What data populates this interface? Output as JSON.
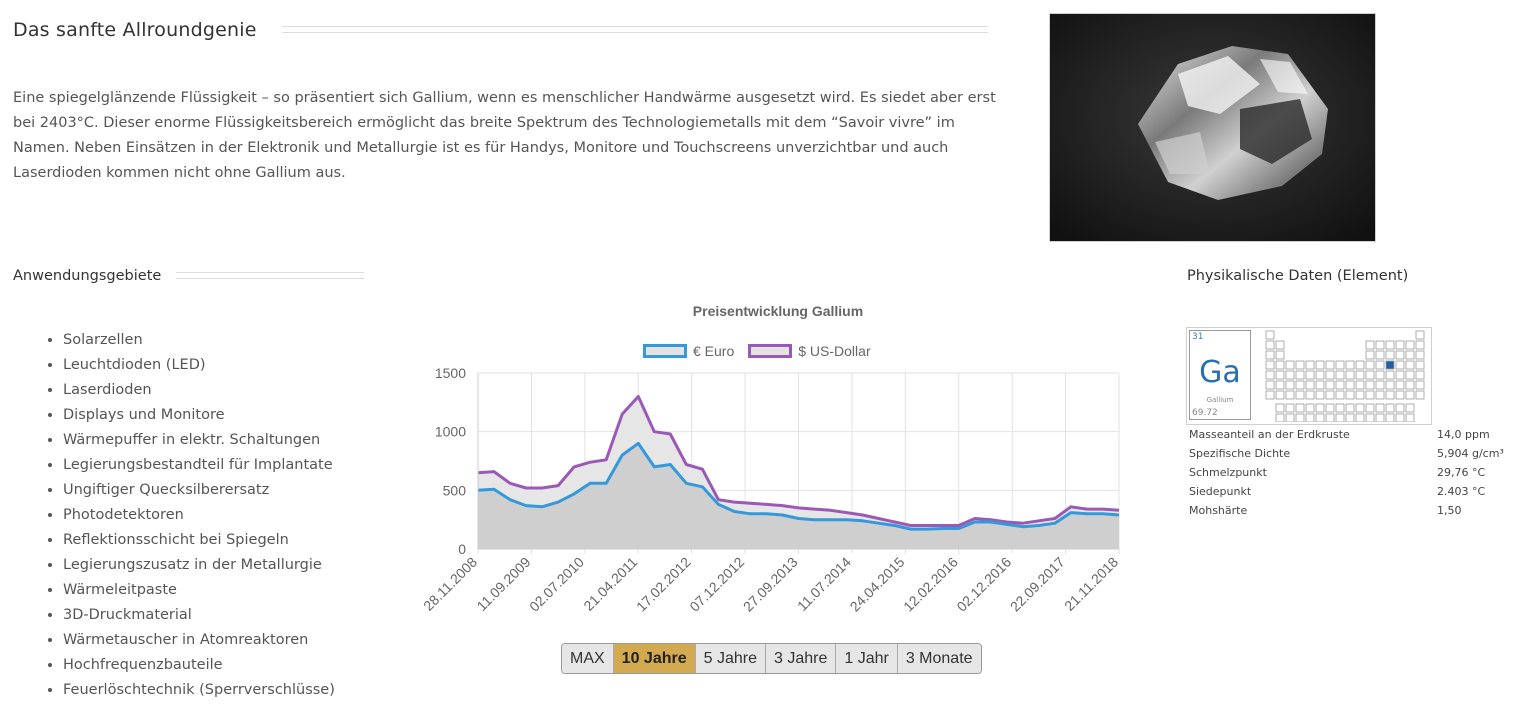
{
  "intro": {
    "title": "Das sanfte Allroundgenie",
    "text": "Eine spiegelglänzende Flüssigkeit – so präsentiert sich Gallium, wenn es menschlicher Handwärme ausgesetzt wird. Es siedet aber erst bei 2403°C. Dieser enorme Flüssigkeitsbereich ermöglicht das breite Spektrum des Technologiemetalls mit dem “Savoir vivre” im Namen. Neben Einsätzen in der Elektronik und Metallurgie ist es für Handys, Monitore und Touchscreens unverzichtbar und auch Laserdioden kommen nicht ohne Gallium aus."
  },
  "applications": {
    "title": "Anwendungsgebiete",
    "items": [
      "Solarzellen",
      "Leuchtdioden (LED)",
      "Laserdioden",
      "Displays und Monitore",
      "Wärmepuffer in elektr. Schaltungen",
      "Legierungsbestandteil für Implantate",
      "Ungiftiger Quecksilberersatz",
      "Photodetektoren",
      "Reflektionsschicht bei Spiegeln",
      "Legierungszusatz in der Metallurgie",
      "Wärmeleitpaste",
      "3D-Druckmaterial",
      "Wärmetauscher in Atomreaktoren",
      "Hochfrequenzbauteile",
      "Feuerlöschtechnik (Sperrverschlüsse)"
    ]
  },
  "chart_data": {
    "type": "area",
    "title": "Preisentwicklung Gallium",
    "xlabel": "",
    "ylabel": "",
    "x_ticks": [
      "28.11.2008",
      "11.09.2009",
      "02.07.2010",
      "21.04.2011",
      "17.02.2012",
      "07.12.2012",
      "27.09.2013",
      "11.07.2014",
      "24.04.2015",
      "12.02.2016",
      "02.12.2016",
      "22.09.2017",
      "21.11.2018"
    ],
    "y_ticks": [
      "0",
      "500",
      "1000",
      "1500"
    ],
    "ylim": [
      0,
      1500
    ],
    "grid": true,
    "legend_position": "top",
    "x_index": [
      0,
      3,
      6,
      9,
      12,
      15,
      18,
      21,
      24,
      27,
      30,
      33,
      36,
      39,
      42,
      45,
      48,
      51,
      54,
      57,
      60,
      63,
      66,
      69,
      72,
      75,
      78,
      81,
      84,
      87,
      90,
      93,
      96,
      99,
      102,
      105,
      108,
      111,
      114,
      117,
      120
    ],
    "series": [
      {
        "name": "€ Euro",
        "color": "#3498db",
        "values": [
          500,
          510,
          420,
          370,
          360,
          400,
          470,
          560,
          560,
          800,
          900,
          700,
          720,
          560,
          530,
          380,
          320,
          300,
          300,
          290,
          260,
          250,
          250,
          250,
          240,
          220,
          200,
          170,
          170,
          175,
          175,
          230,
          230,
          210,
          190,
          200,
          220,
          310,
          300,
          300,
          290
        ]
      },
      {
        "name": "$ US-Dollar",
        "color": "#9b59b6",
        "values": [
          650,
          660,
          560,
          520,
          520,
          540,
          700,
          740,
          760,
          1150,
          1300,
          1000,
          980,
          720,
          680,
          420,
          400,
          390,
          380,
          370,
          350,
          340,
          330,
          310,
          290,
          260,
          230,
          200,
          200,
          200,
          200,
          260,
          250,
          230,
          220,
          240,
          260,
          360,
          340,
          340,
          330
        ]
      }
    ]
  },
  "range_buttons": [
    "MAX",
    "10 Jahre",
    "5 Jahre",
    "3 Jahre",
    "1 Jahr",
    "3 Monate"
  ],
  "active_range": "10 Jahre",
  "element": {
    "title": "Physikalische Daten (Element)",
    "number": "31",
    "symbol": "Ga",
    "name": "Gallium",
    "mass": "69.72",
    "properties": [
      {
        "label": "Masseanteil an der Erdkruste",
        "value": "14,0 ppm"
      },
      {
        "label": "Spezifische Dichte",
        "value": "5,904 g/cm³"
      },
      {
        "label": "Schmelzpunkt",
        "value": "29,76 °C"
      },
      {
        "label": "Siedepunkt",
        "value": "2.403 °C"
      },
      {
        "label": "Mohshärte",
        "value": "1,50"
      }
    ]
  }
}
